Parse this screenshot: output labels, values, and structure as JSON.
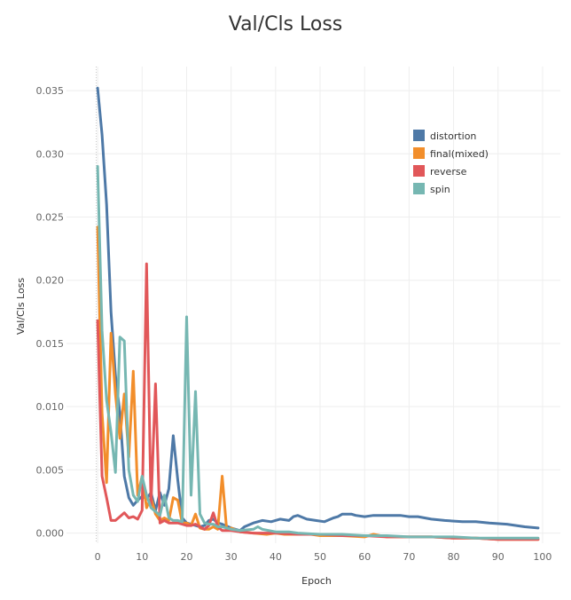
{
  "chart_data": {
    "type": "line",
    "title": "Val/Cls Loss",
    "xlabel": "Epoch",
    "ylabel": "Val/Cls Loss",
    "xlim": [
      -7,
      104
    ],
    "ylim": [
      -0.0008,
      0.0369
    ],
    "xticks": [
      "0",
      "10",
      "20",
      "30",
      "40",
      "50",
      "60",
      "70",
      "80",
      "90",
      "100"
    ],
    "yticks": [
      "0.000",
      "0.005",
      "0.010",
      "0.015",
      "0.020",
      "0.025",
      "0.030",
      "0.035"
    ],
    "grid": true,
    "legend_position": "top-right",
    "series": [
      {
        "name": "distortion",
        "color": "#4e79a7",
        "points": [
          [
            0,
            0.0352
          ],
          [
            1,
            0.0315
          ],
          [
            2,
            0.026
          ],
          [
            3,
            0.0175
          ],
          [
            4,
            0.0125
          ],
          [
            5,
            0.0095
          ],
          [
            6,
            0.0045
          ],
          [
            7,
            0.0028
          ],
          [
            8,
            0.0022
          ],
          [
            9,
            0.0026
          ],
          [
            10,
            0.0029
          ],
          [
            11,
            0.0027
          ],
          [
            12,
            0.0032
          ],
          [
            13,
            0.0018
          ],
          [
            14,
            0.0032
          ],
          [
            15,
            0.0022
          ],
          [
            16,
            0.0035
          ],
          [
            17,
            0.0077
          ],
          [
            18,
            0.0042
          ],
          [
            19,
            0.0012
          ],
          [
            20,
            0.0008
          ],
          [
            21,
            0.0007
          ],
          [
            22,
            0.0006
          ],
          [
            23,
            0.0005
          ],
          [
            24,
            0.0006
          ],
          [
            25,
            0.001
          ],
          [
            26,
            0.0011
          ],
          [
            27,
            0.0008
          ],
          [
            28,
            0.0007
          ],
          [
            30,
            0.0004
          ],
          [
            32,
            0.0002
          ],
          [
            33,
            0.0005
          ],
          [
            35,
            0.0008
          ],
          [
            37,
            0.001
          ],
          [
            39,
            0.0009
          ],
          [
            41,
            0.0011
          ],
          [
            43,
            0.001
          ],
          [
            44,
            0.0013
          ],
          [
            45,
            0.0014
          ],
          [
            47,
            0.0011
          ],
          [
            49,
            0.001
          ],
          [
            51,
            0.0009
          ],
          [
            53,
            0.0012
          ],
          [
            54,
            0.0013
          ],
          [
            55,
            0.0015
          ],
          [
            57,
            0.0015
          ],
          [
            58,
            0.0014
          ],
          [
            60,
            0.0013
          ],
          [
            62,
            0.0014
          ],
          [
            65,
            0.0014
          ],
          [
            68,
            0.0014
          ],
          [
            70,
            0.0013
          ],
          [
            72,
            0.0013
          ],
          [
            75,
            0.0011
          ],
          [
            78,
            0.001
          ],
          [
            82,
            0.0009
          ],
          [
            85,
            0.0009
          ],
          [
            88,
            0.0008
          ],
          [
            92,
            0.0007
          ],
          [
            96,
            0.0005
          ],
          [
            99,
            0.0004
          ]
        ]
      },
      {
        "name": "final(mixed)",
        "color": "#f28e2b",
        "points": [
          [
            0,
            0.0242
          ],
          [
            1,
            0.0095
          ],
          [
            2,
            0.004
          ],
          [
            3,
            0.0158
          ],
          [
            4,
            0.011
          ],
          [
            5,
            0.0075
          ],
          [
            6,
            0.011
          ],
          [
            7,
            0.006
          ],
          [
            8,
            0.0128
          ],
          [
            9,
            0.003
          ],
          [
            10,
            0.0045
          ],
          [
            11,
            0.002
          ],
          [
            12,
            0.0028
          ],
          [
            13,
            0.0015
          ],
          [
            14,
            0.001
          ],
          [
            15,
            0.0012
          ],
          [
            16,
            0.001
          ],
          [
            17,
            0.0028
          ],
          [
            18,
            0.0026
          ],
          [
            19,
            0.0008
          ],
          [
            20,
            0.0008
          ],
          [
            21,
            0.0006
          ],
          [
            22,
            0.0015
          ],
          [
            23,
            0.0004
          ],
          [
            24,
            0.0003
          ],
          [
            25,
            0.0003
          ],
          [
            26,
            0.0005
          ],
          [
            27,
            0.0003
          ],
          [
            28,
            0.0045
          ],
          [
            29,
            0.0003
          ],
          [
            30,
            0.0004
          ],
          [
            32,
            0.0001
          ],
          [
            35,
            0.0
          ],
          [
            38,
            -0.0001
          ],
          [
            40,
            0.0
          ],
          [
            42,
            -0.0001
          ],
          [
            45,
            -0.0001
          ],
          [
            48,
            -0.0001
          ],
          [
            50,
            -0.0002
          ],
          [
            55,
            -0.0002
          ],
          [
            60,
            -0.0003
          ],
          [
            62,
            -0.0001
          ],
          [
            65,
            -0.0003
          ],
          [
            70,
            -0.0003
          ],
          [
            75,
            -0.0003
          ],
          [
            80,
            -0.0004
          ],
          [
            85,
            -0.0004
          ],
          [
            90,
            -0.0005
          ],
          [
            95,
            -0.0005
          ],
          [
            99,
            -0.0005
          ]
        ]
      },
      {
        "name": "reverse",
        "color": "#e15759",
        "points": [
          [
            0,
            0.0168
          ],
          [
            1,
            0.0045
          ],
          [
            2,
            0.0028
          ],
          [
            3,
            0.001
          ],
          [
            4,
            0.001
          ],
          [
            5,
            0.0013
          ],
          [
            6,
            0.0016
          ],
          [
            7,
            0.0012
          ],
          [
            8,
            0.0013
          ],
          [
            9,
            0.0011
          ],
          [
            10,
            0.0018
          ],
          [
            11,
            0.0213
          ],
          [
            12,
            0.0022
          ],
          [
            13,
            0.0118
          ],
          [
            14,
            0.0008
          ],
          [
            15,
            0.001
          ],
          [
            16,
            0.0008
          ],
          [
            17,
            0.0008
          ],
          [
            18,
            0.0008
          ],
          [
            19,
            0.0007
          ],
          [
            20,
            0.0006
          ],
          [
            21,
            0.0006
          ],
          [
            22,
            0.0007
          ],
          [
            23,
            0.0005
          ],
          [
            24,
            0.0003
          ],
          [
            25,
            0.0006
          ],
          [
            26,
            0.0016
          ],
          [
            27,
            0.0005
          ],
          [
            28,
            0.0002
          ],
          [
            30,
            0.0002
          ],
          [
            32,
            0.0001
          ],
          [
            35,
            0.0
          ],
          [
            38,
            0.0
          ],
          [
            40,
            0.0
          ],
          [
            45,
            -0.0001
          ],
          [
            50,
            -0.0001
          ],
          [
            55,
            -0.0002
          ],
          [
            60,
            -0.0002
          ],
          [
            65,
            -0.0003
          ],
          [
            70,
            -0.0003
          ],
          [
            75,
            -0.0003
          ],
          [
            80,
            -0.0004
          ],
          [
            85,
            -0.0004
          ],
          [
            90,
            -0.0005
          ],
          [
            95,
            -0.0005
          ],
          [
            99,
            -0.0005
          ]
        ]
      },
      {
        "name": "spin",
        "color": "#76b7b2",
        "points": [
          [
            0,
            0.029
          ],
          [
            1,
            0.016
          ],
          [
            2,
            0.0105
          ],
          [
            3,
            0.008
          ],
          [
            4,
            0.0048
          ],
          [
            5,
            0.0155
          ],
          [
            6,
            0.0152
          ],
          [
            7,
            0.005
          ],
          [
            8,
            0.003
          ],
          [
            9,
            0.0025
          ],
          [
            10,
            0.0045
          ],
          [
            11,
            0.003
          ],
          [
            12,
            0.002
          ],
          [
            13,
            0.0017
          ],
          [
            14,
            0.0014
          ],
          [
            15,
            0.003
          ],
          [
            16,
            0.0012
          ],
          [
            17,
            0.001
          ],
          [
            18,
            0.001
          ],
          [
            19,
            0.0009
          ],
          [
            20,
            0.0171
          ],
          [
            21,
            0.003
          ],
          [
            22,
            0.0112
          ],
          [
            23,
            0.0015
          ],
          [
            24,
            0.0008
          ],
          [
            25,
            0.0007
          ],
          [
            26,
            0.0007
          ],
          [
            27,
            0.0005
          ],
          [
            28,
            0.0005
          ],
          [
            30,
            0.0003
          ],
          [
            32,
            0.0002
          ],
          [
            35,
            0.0003
          ],
          [
            36,
            0.0005
          ],
          [
            37,
            0.0003
          ],
          [
            40,
            0.0001
          ],
          [
            43,
            0.0001
          ],
          [
            45,
            0.0
          ],
          [
            50,
            -0.0001
          ],
          [
            55,
            -0.0001
          ],
          [
            60,
            -0.0002
          ],
          [
            65,
            -0.0002
          ],
          [
            70,
            -0.0003
          ],
          [
            75,
            -0.0003
          ],
          [
            80,
            -0.0003
          ],
          [
            85,
            -0.0004
          ],
          [
            90,
            -0.0004
          ],
          [
            95,
            -0.0004
          ],
          [
            99,
            -0.0004
          ]
        ]
      }
    ]
  }
}
